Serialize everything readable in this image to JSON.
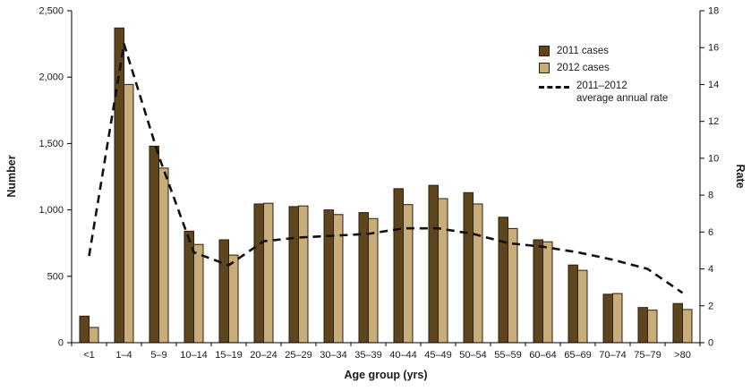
{
  "colors": {
    "bar_2011": "#5e451d",
    "bar_2012": "#c8ac7a",
    "bar_border": "#2a1f0c",
    "rate_line": "#111111",
    "axis": "#000000"
  },
  "legend": {
    "label_2011": "2011 cases",
    "label_2012": "2012 cases",
    "rate_label": "2011–2012\naverage annual rate"
  },
  "chart_data": {
    "type": "bar",
    "categories": [
      "<1",
      "1–4",
      "5–9",
      "10–14",
      "15–19",
      "20–24",
      "25–29",
      "30–34",
      "35–39",
      "40–44",
      "45–49",
      "50–54",
      "55–59",
      "60–64",
      "65–69",
      "70–74",
      "75–79",
      ">80"
    ],
    "series": [
      {
        "name": "2011 cases",
        "axis": "left",
        "values": [
          200,
          2370,
          1480,
          840,
          775,
          1045,
          1025,
          1000,
          980,
          1160,
          1185,
          1130,
          945,
          775,
          585,
          365,
          265,
          295
        ]
      },
      {
        "name": "2012 cases",
        "axis": "left",
        "values": [
          115,
          1945,
          1315,
          740,
          660,
          1050,
          1030,
          965,
          935,
          1040,
          1085,
          1045,
          860,
          760,
          545,
          370,
          245,
          250
        ]
      }
    ],
    "line_series": {
      "name": "2011–2012 average annual rate",
      "axis": "right",
      "values": [
        4.7,
        16.2,
        10.1,
        4.9,
        4.2,
        5.5,
        5.7,
        5.8,
        5.9,
        6.2,
        6.2,
        5.9,
        5.4,
        5.2,
        4.9,
        4.5,
        4.0,
        2.7
      ]
    },
    "title": "",
    "xlabel": "Age group (yrs)",
    "ylabel_left": "Number",
    "ylabel_right": "Rate",
    "ylim_left": [
      0,
      2500
    ],
    "ylim_right": [
      0,
      18
    ],
    "yticks_left": [
      0,
      500,
      1000,
      1500,
      2000,
      2500
    ],
    "yticks_right": [
      0,
      2,
      4,
      6,
      8,
      10,
      12,
      14,
      16,
      18
    ],
    "grid": false,
    "legend_position": "upper-right-inside"
  }
}
